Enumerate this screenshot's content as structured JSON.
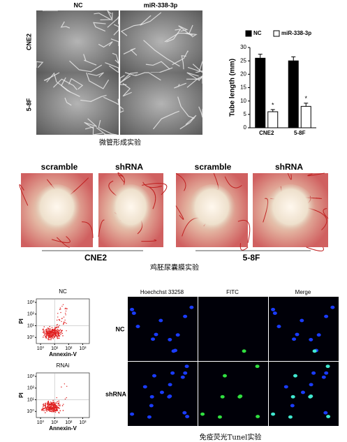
{
  "tube_formation": {
    "columns": [
      "NC",
      "miR-338-3p"
    ],
    "rows": [
      "CNE2",
      "5-8F"
    ],
    "caption": "微管形成实验"
  },
  "chart_data": {
    "type": "bar",
    "ylabel": "Tube length (mm)",
    "categories": [
      "CNE2",
      "5-8F"
    ],
    "series": [
      {
        "name": "NC",
        "color": "#000000",
        "values": [
          26,
          25
        ],
        "errors": [
          1.5,
          1.5
        ]
      },
      {
        "name": "miR-338-3p",
        "color": "#ffffff",
        "values": [
          6,
          8
        ],
        "errors": [
          0.8,
          1.2
        ],
        "significance": [
          "*",
          "*"
        ]
      }
    ],
    "ylim": [
      0,
      30
    ],
    "yticks": [
      0,
      5,
      10,
      15,
      20,
      25,
      30
    ]
  },
  "cam": {
    "labels": [
      "scramble",
      "shRNA",
      "scramble",
      "shRNA"
    ],
    "groups": [
      "CNE2",
      "5-8F"
    ],
    "caption": "鸡胚尿囊膜实验"
  },
  "flow": {
    "plots": [
      {
        "title": "NC",
        "xlabel": "Annexin-V",
        "ylabel": "PI"
      },
      {
        "title": "RNAi",
        "xlabel": "Annexin-V",
        "ylabel": "PI"
      }
    ],
    "log": true,
    "xlim": [
      0.5,
      3000
    ],
    "ylim": [
      0.3,
      2000
    ],
    "xticks": [
      {
        "value": 1,
        "label": "10⁰"
      },
      {
        "value": 10,
        "label": "10¹"
      },
      {
        "value": 100,
        "label": "10²"
      },
      {
        "value": 1000,
        "label": "10³"
      }
    ],
    "yticks": [
      {
        "value": 1,
        "label": "10⁰"
      },
      {
        "value": 10,
        "label": "10¹"
      },
      {
        "value": 100,
        "label": "10²"
      },
      {
        "value": 1000,
        "label": "10³"
      }
    ]
  },
  "tunel": {
    "columns": [
      "Hoechchst 33258",
      "FITC",
      "Merge"
    ],
    "rows": [
      "NC",
      "shRNA"
    ],
    "caption": "免疫荧光Tunel实验"
  }
}
